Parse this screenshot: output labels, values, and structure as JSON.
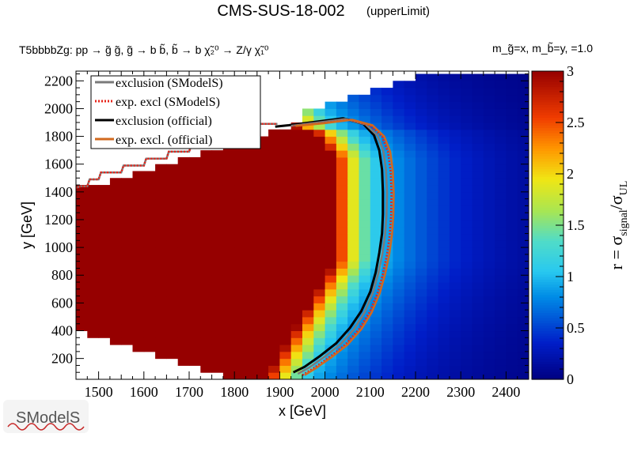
{
  "chart_data": {
    "type": "heatmap",
    "title": "CMS-SUS-18-002",
    "title_tag": "(upperLimit)",
    "process": "T5bbbbZg: pp  → g̃ g̃, g̃  → b b̃, b̃ → b χ̃₂⁰ → Z/γ χ̃₁⁰",
    "mass_info": "m_g̃=x, m_b̃=y, =1.0",
    "xlabel": "x [GeV]",
    "ylabel": "y [GeV]",
    "zlabel": "r = σ_signal/σ_UL",
    "xlim": [
      1450,
      2450
    ],
    "ylim": [
      50,
      2270
    ],
    "zlim": [
      0,
      3
    ],
    "x_ticks": [
      1500,
      1600,
      1700,
      1800,
      1900,
      2000,
      2100,
      2200,
      2300,
      2400
    ],
    "y_ticks": [
      200,
      400,
      600,
      800,
      1000,
      1200,
      1400,
      1600,
      1800,
      2000,
      2200
    ],
    "z_ticks": [
      0,
      0.5,
      1,
      1.5,
      2,
      2.5,
      3
    ],
    "cell_size": {
      "x": 25,
      "y": 50
    },
    "legend": [
      {
        "label": "exclusion (SModelS)",
        "color": "#7a7a7a",
        "style": "solid"
      },
      {
        "label": "exp. excl (SModelS)",
        "color": "#e8251b",
        "style": "dotted"
      },
      {
        "label": "exclusion (official)",
        "color": "#000000",
        "style": "solid"
      },
      {
        "label": "exp. excl. (official)",
        "color": "#d2691e",
        "style": "solid"
      }
    ],
    "series": [
      {
        "name": "exclusion (official)",
        "points": [
          [
            1930,
            100
          ],
          [
            1955,
            140
          ],
          [
            1990,
            220
          ],
          [
            2025,
            310
          ],
          [
            2055,
            420
          ],
          [
            2080,
            540
          ],
          [
            2100,
            680
          ],
          [
            2112,
            820
          ],
          [
            2120,
            960
          ],
          [
            2126,
            1100
          ],
          [
            2128,
            1240
          ],
          [
            2128,
            1400
          ],
          [
            2126,
            1560
          ],
          [
            2120,
            1700
          ],
          [
            2108,
            1810
          ],
          [
            2085,
            1890
          ],
          [
            2040,
            1930
          ],
          [
            1980,
            1905
          ],
          [
            1920,
            1880
          ],
          [
            1890,
            1870
          ]
        ]
      },
      {
        "name": "exclusion (SModelS)",
        "points": [
          [
            1940,
            90
          ],
          [
            1965,
            135
          ],
          [
            2000,
            215
          ],
          [
            2035,
            305
          ],
          [
            2065,
            415
          ],
          [
            2088,
            535
          ],
          [
            2106,
            675
          ],
          [
            2118,
            815
          ],
          [
            2127,
            955
          ],
          [
            2133,
            1095
          ],
          [
            2136,
            1235
          ],
          [
            2137,
            1395
          ],
          [
            2135,
            1555
          ],
          [
            2129,
            1695
          ],
          [
            2116,
            1805
          ],
          [
            2090,
            1885
          ],
          [
            2045,
            1925
          ],
          [
            1985,
            1900
          ],
          [
            1925,
            1876
          ]
        ]
      },
      {
        "name": "exp. excl (SModelS)",
        "points": [
          [
            1950,
            80
          ],
          [
            1975,
            130
          ],
          [
            2010,
            210
          ],
          [
            2045,
            300
          ],
          [
            2075,
            410
          ],
          [
            2098,
            530
          ],
          [
            2116,
            670
          ],
          [
            2128,
            810
          ],
          [
            2137,
            950
          ],
          [
            2143,
            1090
          ],
          [
            2146,
            1230
          ],
          [
            2147,
            1390
          ],
          [
            2145,
            1550
          ],
          [
            2139,
            1690
          ],
          [
            2126,
            1800
          ],
          [
            2100,
            1880
          ],
          [
            2055,
            1920
          ],
          [
            1995,
            1895
          ],
          [
            1930,
            1875
          ]
        ]
      },
      {
        "name": "exp. excl. (official)",
        "points": [
          [
            1955,
            80
          ],
          [
            1980,
            130
          ],
          [
            2015,
            210
          ],
          [
            2050,
            300
          ],
          [
            2080,
            410
          ],
          [
            2103,
            530
          ],
          [
            2121,
            670
          ],
          [
            2133,
            810
          ],
          [
            2142,
            950
          ],
          [
            2148,
            1090
          ],
          [
            2151,
            1230
          ],
          [
            2152,
            1390
          ],
          [
            2150,
            1550
          ],
          [
            2144,
            1690
          ],
          [
            2131,
            1800
          ],
          [
            2105,
            1880
          ],
          [
            2060,
            1920
          ],
          [
            2000,
            1895
          ],
          [
            1935,
            1875
          ]
        ]
      }
    ],
    "exp_boundary": {
      "name": "exp. excl (SModelS) upper boundary",
      "points": [
        [
          1450,
          1430
        ],
        [
          1460,
          1440
        ],
        [
          1475,
          1440
        ],
        [
          1480,
          1490
        ],
        [
          1500,
          1490
        ],
        [
          1505,
          1540
        ],
        [
          1550,
          1540
        ],
        [
          1555,
          1590
        ],
        [
          1600,
          1590
        ],
        [
          1605,
          1640
        ],
        [
          1650,
          1640
        ],
        [
          1655,
          1690
        ],
        [
          1700,
          1690
        ],
        [
          1705,
          1740
        ],
        [
          1750,
          1740
        ],
        [
          1755,
          1790
        ],
        [
          1800,
          1790
        ],
        [
          1805,
          1840
        ],
        [
          1850,
          1840
        ],
        [
          1855,
          1890
        ],
        [
          1895,
          1890
        ]
      ]
    }
  }
}
